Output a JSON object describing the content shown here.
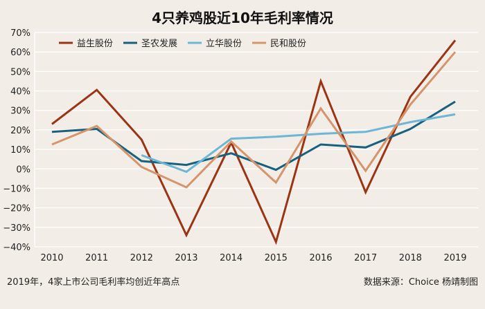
{
  "chart_data": {
    "type": "line",
    "title": "4只养鸡股近10年毛利率情况",
    "categories": [
      "2010",
      "2011",
      "2012",
      "2013",
      "2014",
      "2015",
      "2016",
      "2017",
      "2018",
      "2019"
    ],
    "ylim": [
      -40,
      70
    ],
    "yticks": [
      -40,
      -30,
      -20,
      -10,
      0,
      10,
      20,
      30,
      40,
      50,
      60,
      70
    ],
    "ytick_labels": [
      "−40%",
      "−30%",
      "−20%",
      "−10%",
      "0%",
      "10%",
      "20%",
      "30%",
      "40%",
      "50%",
      "60%",
      "70%"
    ],
    "grid": true,
    "legend_position": "top",
    "series": [
      {
        "name": "益生股份",
        "color": "#9b3414",
        "values": [
          23,
          40.5,
          15,
          -34,
          13.5,
          -37.5,
          45,
          -12,
          37,
          66
        ]
      },
      {
        "name": "圣农发展",
        "color": "#17607e",
        "values": [
          19,
          20.5,
          4,
          2,
          8,
          -0.5,
          12.5,
          11,
          20.5,
          34.5
        ]
      },
      {
        "name": "立华股份",
        "color": "#6db6d6",
        "values": [
          null,
          null,
          7,
          -1.5,
          15.5,
          16.5,
          18,
          19,
          24,
          28
        ]
      },
      {
        "name": "民和股份",
        "color": "#d5946b",
        "values": [
          12.5,
          22,
          1,
          -9.5,
          14,
          -7,
          31,
          -1,
          33,
          60
        ]
      }
    ],
    "note": "2019年，4家上市公司毛利率均创近年高点",
    "source": "数据来源：Choice  杨靖制图"
  }
}
